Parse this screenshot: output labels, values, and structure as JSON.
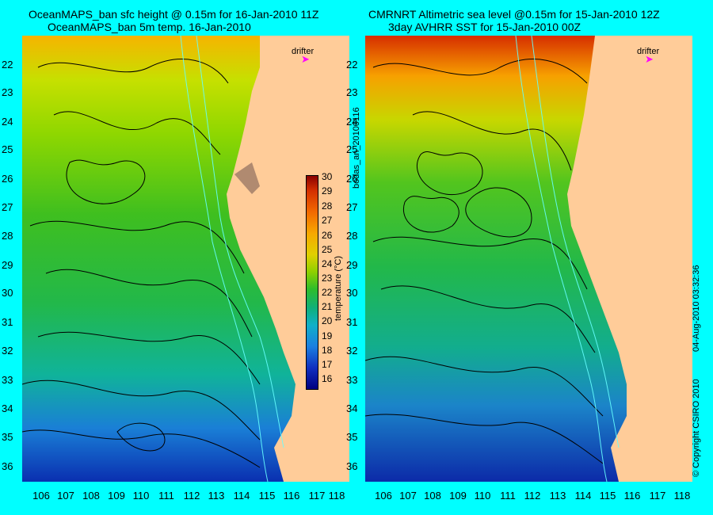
{
  "left_panel": {
    "title_line1": "OceanMAPS_ban sfc height @ 0.15m for 16-Jan-2010 11Z",
    "title_line2": "OceanMAPS_ban 5m temp. 16-Jan-2010",
    "drifter_label": "drifter"
  },
  "right_panel": {
    "title_line1": "CMRNRT Altimetric sea level  @0.15m  for 15-Jan-2010 12Z",
    "title_line2": "3day AVHRR SST for 15-Jan-2010 00Z",
    "drifter_label": "drifter"
  },
  "latitude_labels": [
    "22",
    "23",
    "24",
    "25",
    "26",
    "27",
    "28",
    "29",
    "30",
    "31",
    "32",
    "33",
    "34",
    "35",
    "36"
  ],
  "longitude_labels": [
    "106",
    "107",
    "108",
    "109",
    "110",
    "111",
    "112",
    "113",
    "114",
    "115",
    "116",
    "117",
    "118"
  ],
  "colorbar": {
    "ticks": [
      "30",
      "29",
      "28",
      "27",
      "26",
      "25",
      "24",
      "23",
      "22",
      "21",
      "20",
      "19",
      "18",
      "17",
      "16"
    ],
    "label": "temperature (°C)"
  },
  "side_texts": {
    "analysis_id": "bodas_an_20100116",
    "timestamp": "04-Aug-2010 03:32:36",
    "copyright": "© Copyright CSIRO 2010"
  },
  "colors": {
    "background": "#00ffff",
    "land": "#ffcc99",
    "drifter": "#ff00ff"
  }
}
